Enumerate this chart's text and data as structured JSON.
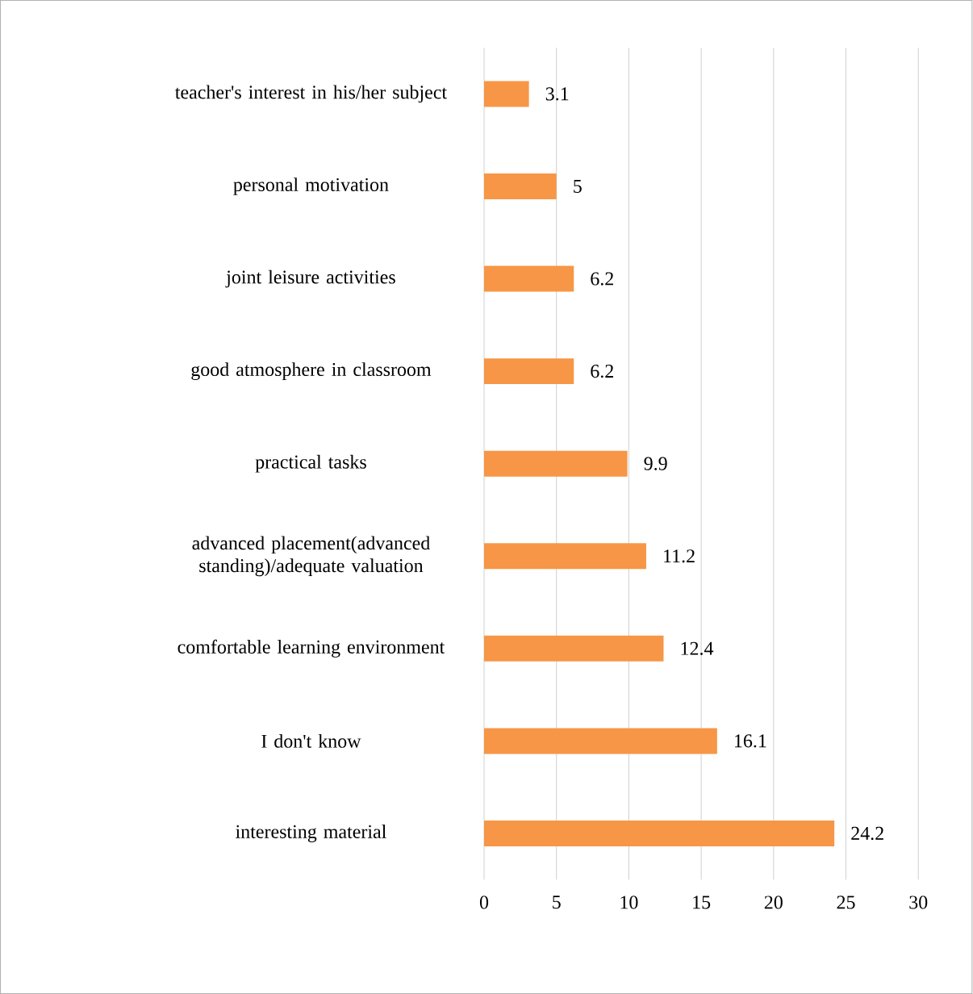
{
  "chart_data": {
    "type": "bar",
    "orientation": "horizontal",
    "categories": [
      "teacher's interest in his/her subject",
      "personal motivation",
      "joint leisure activities",
      "good atmosphere in classroom",
      "practical tasks",
      "advanced placement(advanced standing)/adequate valuation",
      "comfortable learning environment",
      "I don't know",
      "interesting material"
    ],
    "values": [
      3.1,
      5,
      6.2,
      6.2,
      9.9,
      11.2,
      12.4,
      16.1,
      24.2
    ],
    "color": "#f79646",
    "xlim": [
      0,
      30
    ],
    "xticks": [
      0,
      5,
      10,
      15,
      20,
      25,
      30
    ],
    "grid": "x",
    "data_labels": true
  }
}
